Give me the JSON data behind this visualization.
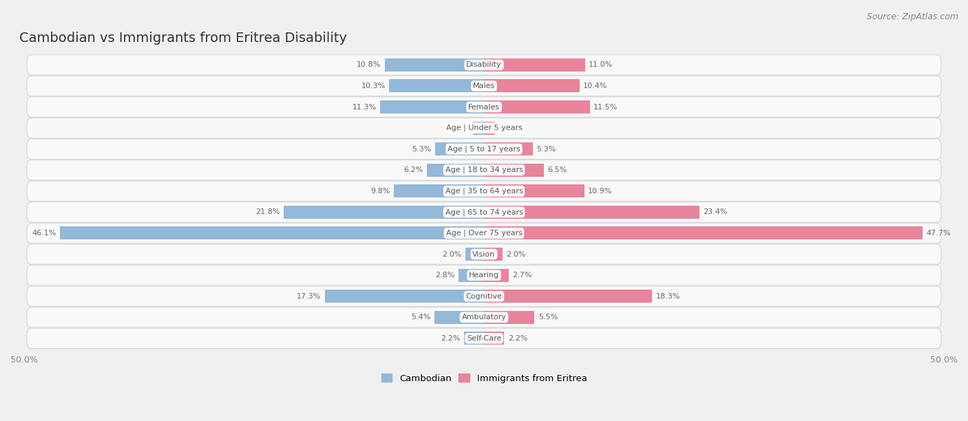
{
  "title": "Cambodian vs Immigrants from Eritrea Disability",
  "source": "Source: ZipAtlas.com",
  "categories": [
    "Disability",
    "Males",
    "Females",
    "Age | Under 5 years",
    "Age | 5 to 17 years",
    "Age | 18 to 34 years",
    "Age | 35 to 64 years",
    "Age | 65 to 74 years",
    "Age | Over 75 years",
    "Vision",
    "Hearing",
    "Cognitive",
    "Ambulatory",
    "Self-Care"
  ],
  "cambodian": [
    10.8,
    10.3,
    11.3,
    1.2,
    5.3,
    6.2,
    9.8,
    21.8,
    46.1,
    2.0,
    2.8,
    17.3,
    5.4,
    2.2
  ],
  "eritrea": [
    11.0,
    10.4,
    11.5,
    1.2,
    5.3,
    6.5,
    10.9,
    23.4,
    47.7,
    2.0,
    2.7,
    18.3,
    5.5,
    2.2
  ],
  "cambodian_color": "#94b8d8",
  "eritrea_color": "#e8849c",
  "max_value": 50.0,
  "background_color": "#f0f0f0",
  "row_bg_light": "#f9f9f9",
  "row_border": "#d8d8d8",
  "bar_height": 0.62,
  "title_fontsize": 14,
  "label_fontsize": 8,
  "value_fontsize": 8,
  "source_fontsize": 9
}
